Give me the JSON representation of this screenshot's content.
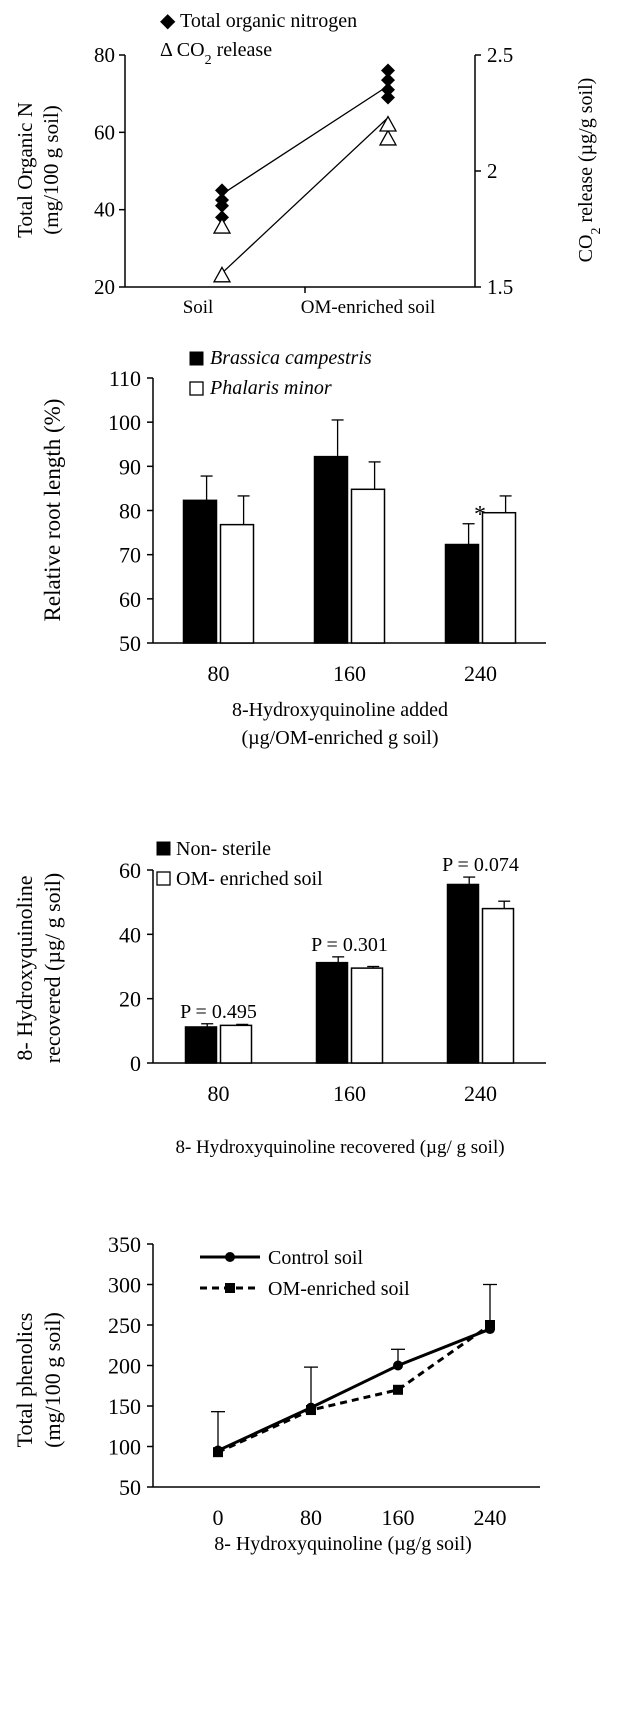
{
  "chart_data": [
    {
      "type": "scatter",
      "legend": [
        {
          "marker": "◆",
          "label": "Total organic nitrogen"
        },
        {
          "marker": "Δ",
          "label": "CO",
          "sub": "2",
          "label_after": " release"
        }
      ],
      "ylabel_left": [
        "Total Organic N",
        "(mg/100 g soil)"
      ],
      "ylabel_right": {
        "label": "CO",
        "sub": "2",
        "label_after": " release (µg/g soil)"
      },
      "categories": [
        "Soil",
        "OM-enriched soil"
      ],
      "ylim_left": [
        20,
        80
      ],
      "yticks_left": [
        20,
        40,
        60,
        80
      ],
      "ylim_right": [
        1.5,
        2.5
      ],
      "yticks_right": [
        "1.5",
        "2",
        "2.5"
      ],
      "series": [
        {
          "name": "Total organic nitrogen",
          "marker": "diamond",
          "axis": "left",
          "points": [
            {
              "x": "Soil",
              "y": 38
            },
            {
              "x": "Soil",
              "y": 41
            },
            {
              "x": "Soil",
              "y": 42.5
            },
            {
              "x": "Soil",
              "y": 45
            },
            {
              "x": "OM-enriched soil",
              "y": 69
            },
            {
              "x": "OM-enriched soil",
              "y": 71
            },
            {
              "x": "OM-enriched soil",
              "y": 73.5
            },
            {
              "x": "OM-enriched soil",
              "y": 76
            }
          ],
          "trend": [
            {
              "x": "Soil",
              "y": 44
            },
            {
              "x": "OM-enriched soil",
              "y": 72
            }
          ]
        },
        {
          "name": "CO2 release",
          "marker": "triangle",
          "axis": "right",
          "points": [
            {
              "x": "Soil",
              "y": 1.55
            },
            {
              "x": "Soil",
              "y": 1.76
            },
            {
              "x": "OM-enriched soil",
              "y": 2.14
            },
            {
              "x": "OM-enriched soil",
              "y": 2.2
            }
          ],
          "trend": [
            {
              "x": "Soil",
              "y": 1.56
            },
            {
              "x": "OM-enriched soil",
              "y": 2.23
            }
          ]
        }
      ]
    },
    {
      "type": "bar",
      "legend": [
        "Brassica campestris",
        "Phalaris minor"
      ],
      "ylabel": "Relative root length (%)",
      "xlabel": [
        "8-Hydroxyquinoline added",
        "(µg/OM-enriched g soil)"
      ],
      "categories": [
        "80",
        "160",
        "240"
      ],
      "ylim": [
        50,
        110
      ],
      "yticks": [
        50,
        60,
        70,
        80,
        90,
        100,
        110
      ],
      "series": [
        {
          "name": "Brassica campestris",
          "color": "#000000",
          "values": [
            82.3,
            92.2,
            72.3
          ],
          "errors": [
            5.5,
            8.3,
            4.7
          ]
        },
        {
          "name": "Phalaris minor",
          "color": "#ffffff",
          "values": [
            76.8,
            84.8,
            79.5
          ],
          "errors": [
            6.5,
            6.2,
            3.8
          ]
        }
      ],
      "annotations": [
        {
          "category": "240",
          "series": "Brassica campestris",
          "text": "*"
        }
      ]
    },
    {
      "type": "bar",
      "legend": [
        "Non- sterile",
        "OM- enriched soil"
      ],
      "ylabel": [
        "8- Hydroxyquinoline",
        "recovered (µg/ g soil)"
      ],
      "xlabel": "8- Hydroxyquinoline recovered (µg/ g soil)",
      "categories": [
        "80",
        "160",
        "240"
      ],
      "ylim": [
        0,
        60
      ],
      "yticks": [
        0,
        20,
        40,
        60
      ],
      "series": [
        {
          "name": "Non- sterile",
          "color": "#000000",
          "values": [
            11.2,
            31.2,
            55.5
          ],
          "errors": [
            1.0,
            1.8,
            2.3
          ]
        },
        {
          "name": "OM- enriched soil",
          "color": "#ffffff",
          "values": [
            11.7,
            29.5,
            48.0
          ],
          "errors": [
            0.3,
            0.5,
            2.3
          ]
        }
      ],
      "annotations": [
        "P = 0.495",
        "P = 0.301",
        "P = 0.074"
      ]
    },
    {
      "type": "line",
      "legend": [
        "Control soil",
        "OM-enriched soil"
      ],
      "ylabel": [
        "Total phenolics",
        "(mg/100 g soil)"
      ],
      "xlabel": "8- Hydroxyquinoline (µg/g soil)",
      "categories": [
        "0",
        "80",
        "160",
        "240"
      ],
      "ylim": [
        50,
        350
      ],
      "yticks": [
        50,
        100,
        150,
        200,
        250,
        300,
        350
      ],
      "series": [
        {
          "name": "Control soil",
          "style": "solid",
          "marker": "circle",
          "values": [
            95,
            148,
            200,
            245
          ],
          "errors": [
            48,
            50,
            20,
            55
          ]
        },
        {
          "name": "OM-enriched soil",
          "style": "dashed",
          "marker": "square",
          "values": [
            93,
            145,
            170,
            250
          ],
          "errors": [
            0,
            0,
            0,
            0
          ]
        }
      ]
    }
  ]
}
